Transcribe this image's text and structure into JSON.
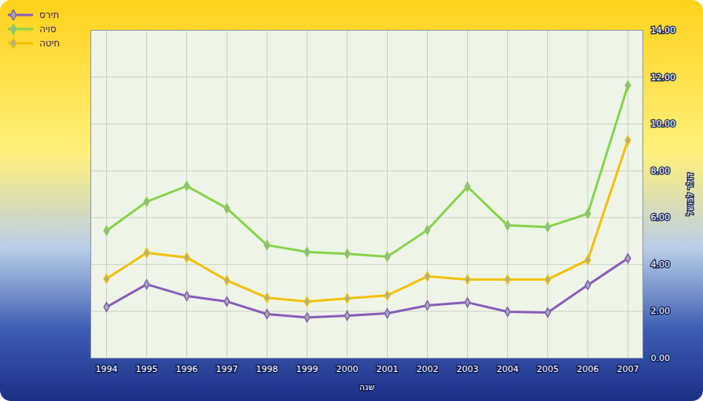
{
  "chart_data": {
    "type": "line",
    "x_label": "שנה",
    "y_label": "דולר לבושל",
    "categories": [
      "1994",
      "1995",
      "1996",
      "1997",
      "1998",
      "1999",
      "2000",
      "2001",
      "2002",
      "2003",
      "2004",
      "2005",
      "2006",
      "2007"
    ],
    "series": [
      {
        "name": "תירס",
        "color": "#8a5cb8",
        "marker": "diamond",
        "values": [
          2.18,
          3.15,
          2.65,
          2.42,
          1.88,
          1.74,
          1.81,
          1.91,
          2.25,
          2.38,
          1.98,
          1.95,
          3.12,
          4.26
        ]
      },
      {
        "name": "סויה",
        "color": "#86d44a",
        "marker": "diamond",
        "values": [
          5.44,
          6.68,
          7.35,
          6.4,
          4.83,
          4.53,
          4.46,
          4.33,
          5.47,
          7.32,
          5.67,
          5.6,
          6.17,
          11.64
        ]
      },
      {
        "name": "חיטה",
        "color": "#f2c100",
        "marker": "diamond",
        "values": [
          3.39,
          4.5,
          4.3,
          3.32,
          2.58,
          2.42,
          2.55,
          2.68,
          3.49,
          3.36,
          3.36,
          3.36,
          4.19,
          9.3
        ]
      }
    ],
    "ylim": [
      0,
      14
    ],
    "yticks": [
      {
        "value": 0,
        "label": "0.00"
      },
      {
        "value": 2,
        "label": "2.00"
      },
      {
        "value": 4,
        "label": "4.00"
      },
      {
        "value": 6,
        "label": "6.00"
      },
      {
        "value": 8,
        "label": "8.00"
      },
      {
        "value": 10,
        "label": "10.00"
      },
      {
        "value": 12,
        "label": "12.00"
      },
      {
        "value": 14,
        "label": "14.00"
      }
    ],
    "grid": true,
    "legend": "top-left"
  }
}
